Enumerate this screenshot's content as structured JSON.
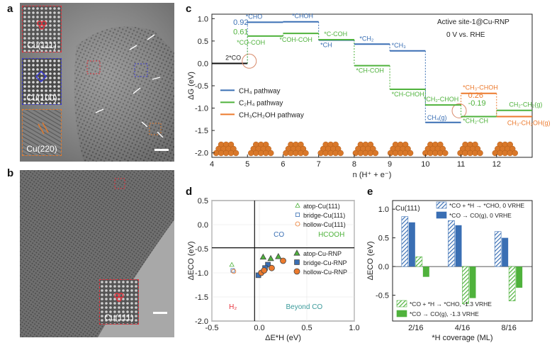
{
  "panels": {
    "a": {
      "letter": "a",
      "insets": [
        {
          "label": "Cu(111)",
          "color": "#e5323c"
        },
        {
          "label": "Cu(100)",
          "color": "#3c3cd0"
        },
        {
          "label": "Cu(220)",
          "color": "#e07a2e"
        }
      ]
    },
    "b": {
      "letter": "b",
      "inset_label": "Cu(111)",
      "inset_color": "#e5323c"
    },
    "c": {
      "letter": "c"
    },
    "d": {
      "letter": "d"
    },
    "e": {
      "letter": "e"
    }
  },
  "chart_data": [
    {
      "id": "c",
      "type": "line",
      "xlabel": "n (H⁺ + e⁻)",
      "ylabel": "ΔG (eV)",
      "xlim": [
        4,
        13
      ],
      "ylim": [
        -2.1,
        1.1
      ],
      "xticks": [
        4,
        5,
        6,
        7,
        8,
        9,
        10,
        11,
        12
      ],
      "yticks": [
        "1.0",
        "0.5",
        "0.0",
        "-0.5",
        "-1.0",
        "-1.5",
        "-2.0"
      ],
      "annotations": [
        "Active site-1@Cu-RNP",
        "0 V vs. RHE"
      ],
      "start": {
        "label": "2*CO",
        "x": [
          4,
          5
        ],
        "y": 0.0,
        "color": "#111111"
      },
      "legend": [
        "CH₄ pathway",
        "C₂H₄ pathway",
        "CH₃CH₂OH pathway"
      ],
      "series": [
        {
          "name": "CH₄ pathway",
          "color": "#3a6fb4",
          "steps": [
            {
              "x": [
                5,
                6
              ],
              "y": 0.92,
              "label": "*CHO"
            },
            {
              "x": [
                6,
                7
              ],
              "y": 0.93,
              "label": "*CHOH"
            },
            {
              "x": [
                7,
                8
              ],
              "y": 0.52,
              "label": "*CH"
            },
            {
              "x": [
                8,
                9
              ],
              "y": 0.43,
              "label": "*CH₂"
            },
            {
              "x": [
                9,
                10
              ],
              "y": 0.28,
              "label": "*CH₃"
            },
            {
              "x": [
                10,
                11
              ],
              "y": -1.32,
              "label": "CH₄(g)"
            }
          ]
        },
        {
          "name": "C₂H₄ pathway",
          "color": "#4fb23c",
          "steps": [
            {
              "x": [
                5,
                6
              ],
              "y": 0.61,
              "label": "*CO-COH"
            },
            {
              "x": [
                6,
                7
              ],
              "y": 0.67,
              "label": "*COH-COH"
            },
            {
              "x": [
                7,
                8
              ],
              "y": 0.53,
              "label": "*C-COH"
            },
            {
              "x": [
                8,
                9
              ],
              "y": -0.05,
              "label": "*CH-COH"
            },
            {
              "x": [
                9,
                10
              ],
              "y": -0.58,
              "label": "*CH-CHOH"
            },
            {
              "x": [
                10,
                11
              ],
              "y": -0.93,
              "label": "*CH₂-CHOH"
            },
            {
              "x": [
                11,
                12
              ],
              "y": -1.19,
              "label": "*CH₂-CH"
            },
            {
              "x": [
                12,
                13
              ],
              "y": -1.05,
              "label": "CH₂-CH₂(g)"
            }
          ]
        },
        {
          "name": "CH₃CH₂OH pathway",
          "color": "#ec7a2d",
          "steps": [
            {
              "x": [
                11,
                12
              ],
              "y": -0.67,
              "label": "*CH₃-CHOH"
            },
            {
              "x": [
                12,
                13
              ],
              "y": -1.19,
              "label": "CH₃-CH₂OH(g)"
            }
          ]
        }
      ],
      "value_labels": [
        {
          "text": "0.92",
          "color": "#3a6fb4"
        },
        {
          "text": "0.61",
          "color": "#4fb23c"
        },
        {
          "text": "0.26",
          "color": "#ec7a2d"
        },
        {
          "text": "-0.19",
          "color": "#4fb23c"
        }
      ]
    },
    {
      "id": "d",
      "type": "scatter",
      "xlabel": "ΔE*H (eV)",
      "ylabel": "ΔECO (eV)",
      "xlim": [
        -0.5,
        1.0
      ],
      "ylim": [
        -2.0,
        0.5
      ],
      "xticks": [
        "-0.5",
        "0.0",
        "0.5",
        "1.0"
      ],
      "yticks": [
        "0.5",
        "0.0",
        "-0.5",
        "-1.0",
        "-1.5",
        "-2.0"
      ],
      "divider_x": -0.05,
      "divider_y": -0.48,
      "regions": [
        {
          "text": "CO",
          "x": 0.15,
          "y": -0.25,
          "color": "#3a6fb4"
        },
        {
          "text": "HCOOH",
          "x": 0.62,
          "y": -0.25,
          "color": "#4fb23c"
        },
        {
          "text": "H₂",
          "x": -0.32,
          "y": -1.75,
          "color": "#e5323c"
        },
        {
          "text": "Beyond CO",
          "x": 0.28,
          "y": -1.75,
          "color": "#3a9a9a"
        }
      ],
      "series": [
        {
          "name": "atop-Cu(111)",
          "marker": "triangle",
          "filled": false,
          "color": "#4fb23c",
          "points": [
            [
              -0.29,
              -0.83
            ]
          ]
        },
        {
          "name": "bridge-Cu(111)",
          "marker": "square",
          "filled": false,
          "color": "#3a6fb4",
          "points": [
            [
              -0.28,
              -0.95
            ]
          ]
        },
        {
          "name": "hollow-Cu(111)",
          "marker": "circle",
          "filled": false,
          "color": "#ec7a2d",
          "points": [
            [
              -0.27,
              -0.97
            ]
          ]
        },
        {
          "name": "atop-Cu-RNP",
          "marker": "triangle",
          "filled": true,
          "color": "#4fb23c",
          "points": [
            [
              0.04,
              -0.67
            ],
            [
              0.12,
              -0.7
            ],
            [
              0.2,
              -0.66
            ]
          ]
        },
        {
          "name": "bridge-Cu-RNP",
          "marker": "square",
          "filled": true,
          "color": "#3a6fb4",
          "points": [
            [
              -0.01,
              -1.05
            ],
            [
              0.09,
              -0.83
            ],
            [
              0.06,
              -0.9
            ]
          ]
        },
        {
          "name": "hollow-Cu-RNP",
          "marker": "circle",
          "filled": true,
          "color": "#ec7a2d",
          "points": [
            [
              0.02,
              -1.0
            ],
            [
              0.05,
              -0.95
            ],
            [
              0.25,
              -0.75
            ],
            [
              0.13,
              -0.9
            ]
          ]
        }
      ]
    },
    {
      "id": "e",
      "type": "bar",
      "xlabel": "*H coverage (ML)",
      "ylabel": "ΔECO (eV)",
      "ylim": [
        -0.95,
        1.15
      ],
      "yticks": [
        "1.0",
        "0.5",
        "0.0",
        "-0.5"
      ],
      "categories": [
        "2/16",
        "4/16",
        "8/16"
      ],
      "facet_label": "Cu(111)",
      "series": [
        {
          "name": "*CO + *H → *CHO, 0 VRHE",
          "color": "#3a6fb4",
          "pattern": "hatch",
          "values": [
            0.87,
            0.8,
            0.61
          ]
        },
        {
          "name": "*CO → CO(g), 0 VRHE",
          "color": "#3a6fb4",
          "pattern": "solid",
          "values": [
            0.77,
            0.72,
            0.5
          ]
        },
        {
          "name": "*CO + *H → *CHO, -1.3 VRHE",
          "color": "#4fb23c",
          "pattern": "hatch",
          "values": [
            0.17,
            -0.65,
            -0.6
          ]
        },
        {
          "name": "*CO → CO(g), -1.3 VRHE",
          "color": "#4fb23c",
          "pattern": "solid",
          "values": [
            -0.18,
            -0.55,
            -0.37
          ]
        }
      ]
    }
  ]
}
